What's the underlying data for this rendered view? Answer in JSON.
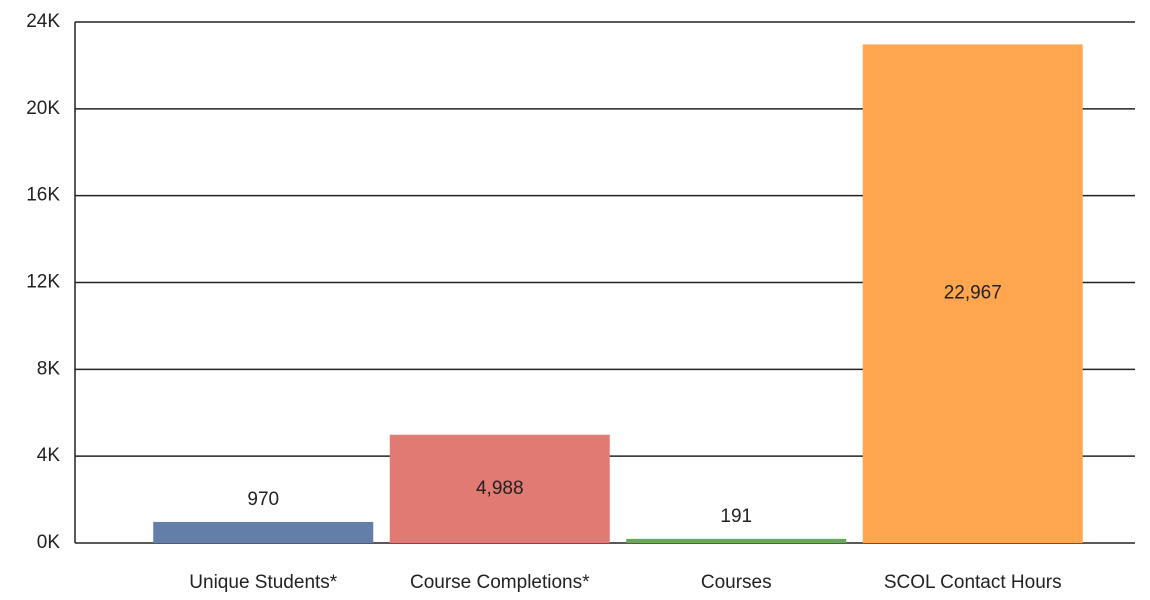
{
  "chart_data": {
    "type": "bar",
    "categories": [
      "Unique Students*",
      "Course Completions*",
      "Courses",
      "SCOL Contact Hours"
    ],
    "values": [
      970,
      4988,
      191,
      22967
    ],
    "value_labels": [
      "970",
      "4,988",
      "191",
      "22,967"
    ],
    "colors": [
      "#637fa9",
      "#e07a73",
      "#69a85a",
      "#ffa64e"
    ],
    "ylim": [
      0,
      24000
    ],
    "yticks": [
      {
        "value": 0,
        "label": "0K"
      },
      {
        "value": 4000,
        "label": "4K"
      },
      {
        "value": 8000,
        "label": "8K"
      },
      {
        "value": 12000,
        "label": "12K"
      },
      {
        "value": 16000,
        "label": "16K"
      },
      {
        "value": 20000,
        "label": "20K"
      },
      {
        "value": 24000,
        "label": "24K"
      }
    ],
    "grid": true
  }
}
